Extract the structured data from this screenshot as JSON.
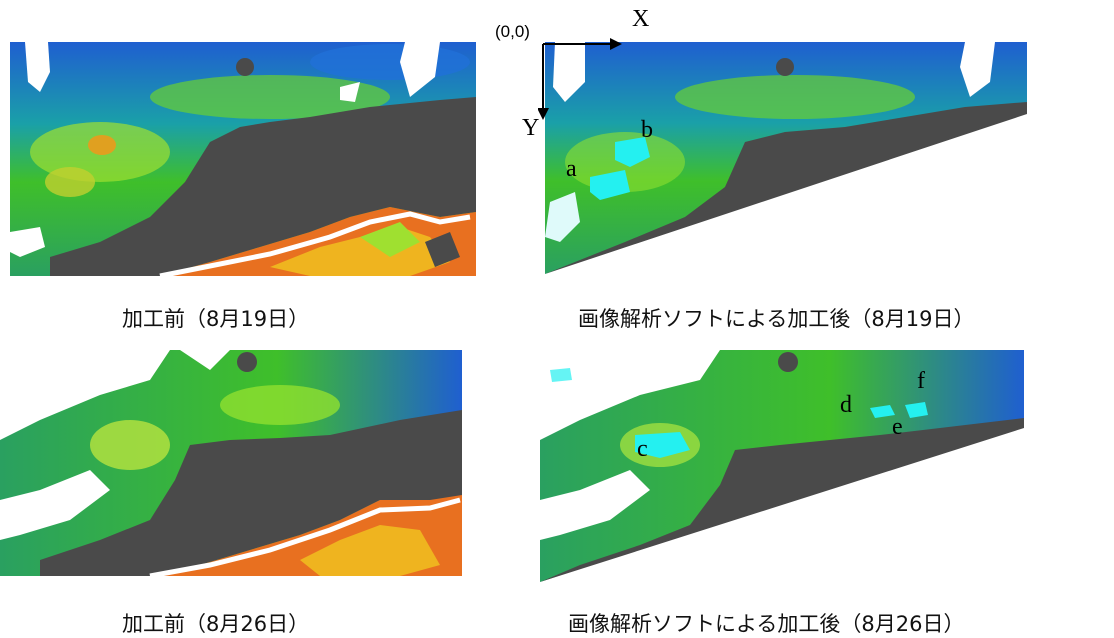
{
  "captions": {
    "top_left": "加工前（8月19日）",
    "top_right": "画像解析ソフトによる加工後（8月19日）",
    "bottom_left": "加工前（8月26日）",
    "bottom_right": "画像解析ソフトによる加工後（8月26日）"
  },
  "axes": {
    "origin": "(0,0)",
    "x": "X",
    "y": "Y"
  },
  "labels": {
    "a": "a",
    "b": "b",
    "c": "c",
    "d": "d",
    "e": "e",
    "f": "f"
  },
  "colors": {
    "land": "#4a4a4a",
    "deep": "#1f5fd0",
    "mid": "#1aa0a8",
    "green": "#3fbf2a",
    "lime": "#8fe020",
    "warm": "#e04a10",
    "cyan": "#24f0f0",
    "cloud": "#ffffff"
  }
}
